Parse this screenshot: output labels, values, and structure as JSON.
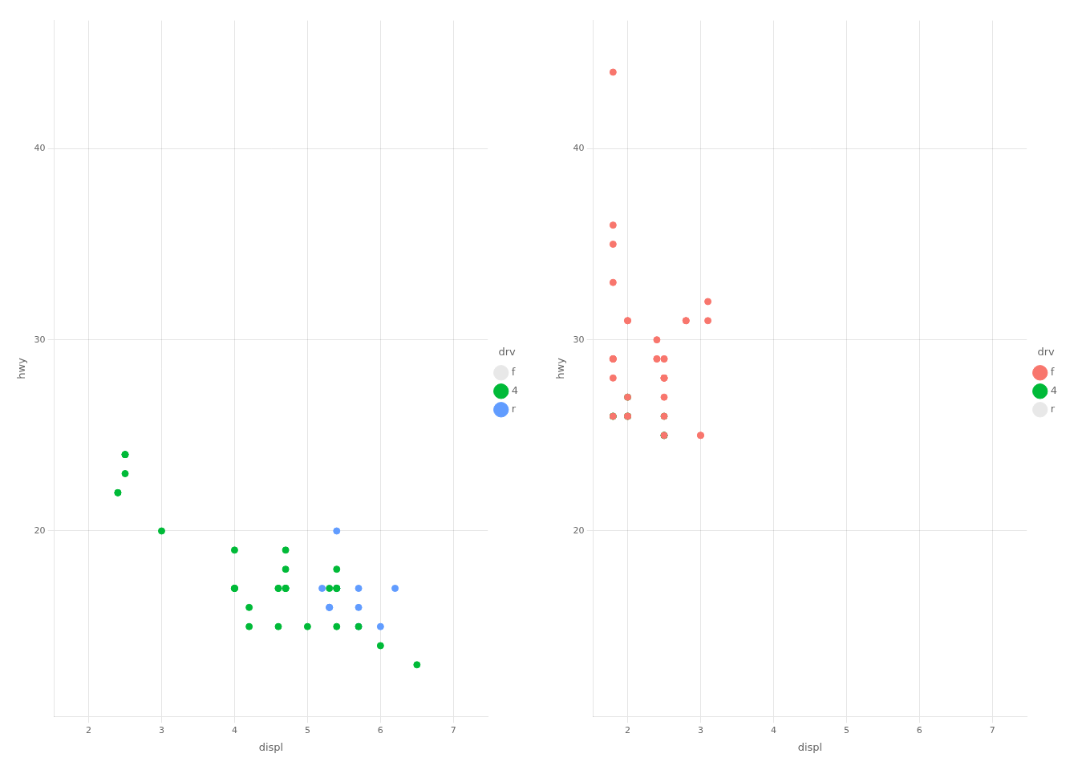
{
  "chart_data": [
    {
      "type": "scatter",
      "xlabel": "displ",
      "ylabel": "hwy",
      "xlim": [
        1.528,
        7.472
      ],
      "ylim": [
        10.3,
        46.7
      ],
      "xticks": [
        2,
        3,
        4,
        5,
        6,
        7
      ],
      "yticks": [
        20,
        30,
        40
      ],
      "grid": true,
      "legend": "right",
      "legend_title": "drv",
      "series": [
        {
          "name": "f",
          "color": "#E8E8E8",
          "x": [],
          "values": []
        },
        {
          "name": "4",
          "color": "#00BA38",
          "x": [
            2.4,
            2.4,
            2.5,
            2.5,
            2.5,
            2.5,
            3.0,
            4.0,
            4.0,
            4.6,
            4.7,
            4.7,
            4.7,
            5.4,
            4.0,
            4.7,
            4.7,
            4.7,
            5.4,
            5.4,
            4.6,
            5.4,
            5.4,
            4.0,
            4.0,
            4.6,
            5.0,
            4.2,
            4.2,
            6.5,
            5.3,
            5.7,
            6.0
          ],
          "values": [
            22,
            22,
            24,
            24,
            24,
            23,
            20,
            17,
            17,
            17,
            17,
            17,
            17,
            17,
            19,
            17,
            19,
            18,
            18,
            17,
            17,
            15,
            17,
            17,
            17,
            15,
            15,
            16,
            15,
            13,
            17,
            15,
            14
          ]
        },
        {
          "name": "r",
          "color": "#619CFF",
          "x": [
            5.3,
            5.3,
            5.3,
            5.7,
            6.0,
            5.4,
            5.4,
            5.4,
            5.7,
            5.7,
            6.2,
            5.2
          ],
          "values": [
            16,
            16,
            16,
            17,
            15,
            20,
            17,
            17,
            16,
            15,
            17,
            17
          ]
        }
      ]
    },
    {
      "type": "scatter",
      "xlabel": "displ",
      "ylabel": "hwy",
      "xlim": [
        1.528,
        7.472
      ],
      "ylim": [
        10.3,
        46.7
      ],
      "xticks": [
        2,
        3,
        4,
        5,
        6,
        7
      ],
      "yticks": [
        20,
        30,
        40
      ],
      "grid": true,
      "legend": "right",
      "legend_title": "drv",
      "series": [
        {
          "name": "f",
          "color": "#F8766D",
          "x": [
            1.8,
            1.8,
            2.0,
            2.0,
            1.8,
            1.8,
            1.8,
            1.8,
            1.8,
            2.0,
            2.0,
            2.0,
            2.5,
            3.0,
            3.0,
            2.5,
            2.5,
            2.5,
            2.5,
            2.8,
            2.8,
            3.1,
            3.1,
            2.4,
            2.4,
            2.4,
            2.5,
            2.5,
            2.5,
            2.5,
            1.8,
            1.8,
            1.8,
            1.8
          ],
          "values": [
            29,
            29,
            31,
            31,
            29,
            29,
            28,
            29,
            26,
            26,
            27,
            26,
            25,
            25,
            25,
            28,
            27,
            28,
            28,
            31,
            31,
            32,
            31,
            29,
            30,
            29,
            29,
            29,
            28,
            26,
            44,
            36,
            35,
            33
          ]
        },
        {
          "name": "4",
          "color": "#00BA38",
          "x": [
            1.8,
            1.8,
            2.0,
            2.0,
            2.0,
            2.0,
            2.5,
            2.5,
            2.5,
            2.5
          ],
          "values": [
            26,
            26,
            26,
            26,
            27,
            26,
            25,
            26,
            25,
            25
          ]
        },
        {
          "name": "r",
          "color": "#E8E8E8",
          "x": [],
          "values": []
        }
      ]
    }
  ]
}
